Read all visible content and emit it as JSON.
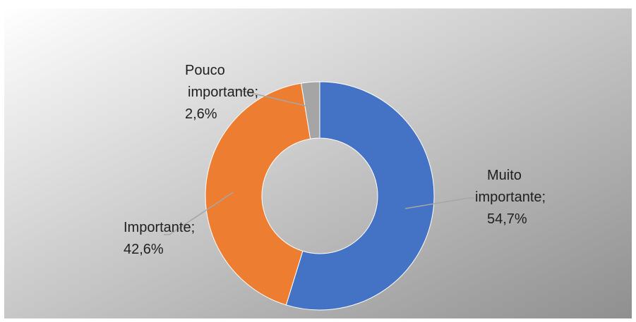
{
  "chart_data": {
    "type": "pie",
    "variant": "doughnut",
    "title": "",
    "slices": [
      {
        "label": "Muito importante",
        "value": 54.7,
        "value_text": "54,7%",
        "color": "#4472C4"
      },
      {
        "label": "Importante",
        "value": 42.6,
        "value_text": "42,6%",
        "color": "#ED7D31"
      },
      {
        "label": "Pouco importante",
        "value": 2.6,
        "value_text": "2,6%",
        "color": "#A5A5A5"
      }
    ],
    "start_angle": "12 o'clock",
    "direction": "clockwise",
    "legend": "none",
    "data_labels": "outside with leader lines",
    "background": {
      "style": "gradient",
      "from": "#ffffff",
      "to": "#8f8f8f"
    }
  }
}
